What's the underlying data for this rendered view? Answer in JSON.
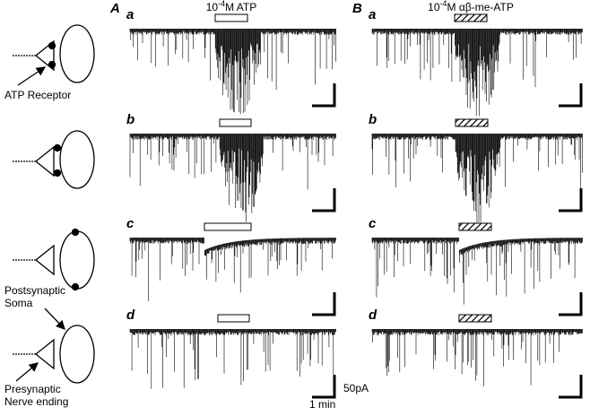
{
  "panels": [
    {
      "label": "A",
      "stimulus": {
        "base": "10",
        "exp": "-4",
        "rest": "M ATP"
      },
      "rows": [
        "a",
        "b",
        "c",
        "d"
      ]
    },
    {
      "label": "B",
      "stimulus": {
        "base": "10",
        "exp": "-4",
        "rest": "M αβ-me-ATP"
      },
      "rows": [
        "a",
        "b",
        "c",
        "d"
      ]
    }
  ],
  "diagram_labels": {
    "receptor": "ATP Receptor",
    "post": [
      "Postsynaptic",
      "Soma"
    ],
    "pre": [
      "Presynaptic",
      "Nerve ending"
    ]
  },
  "scale": {
    "current": "50pA",
    "time": "1 min"
  }
}
